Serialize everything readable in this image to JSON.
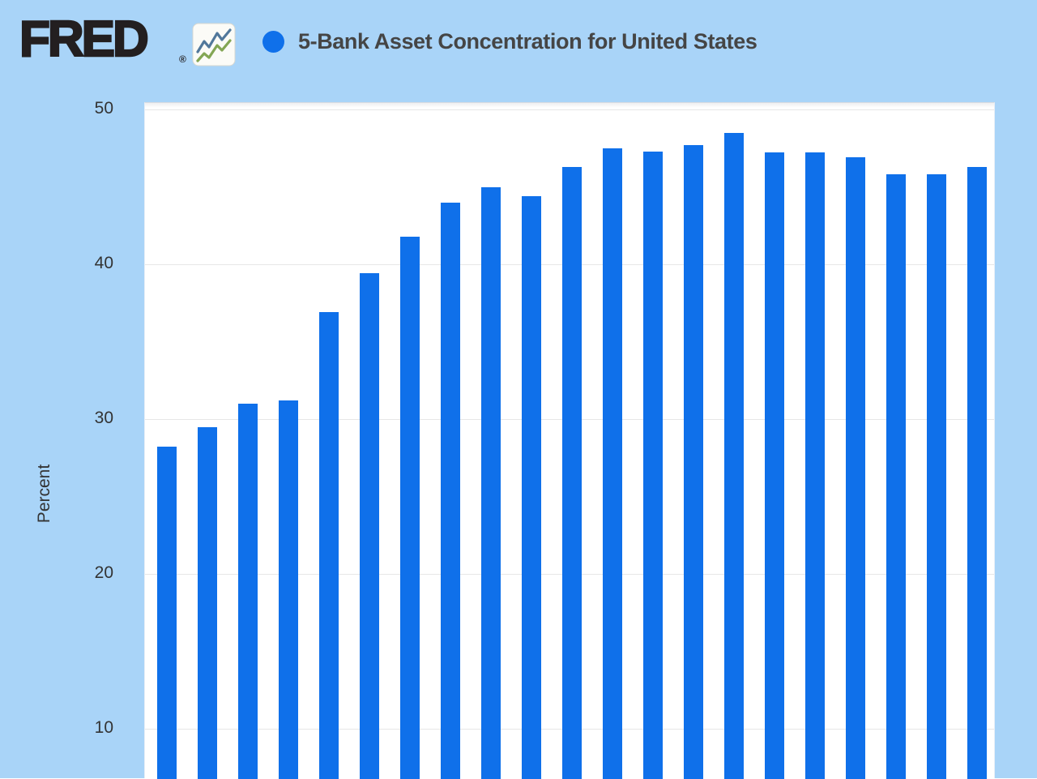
{
  "header": {
    "logo_text": "FRED",
    "registered_mark": "®"
  },
  "chart_data": {
    "type": "bar",
    "title": "5-Bank Asset Concentration for United States",
    "xlabel": "",
    "ylabel": "Percent",
    "y_ticks": [
      10,
      20,
      30,
      40,
      50
    ],
    "ylim": [
      0,
      50
    ],
    "grid": "horizontal-gridlines",
    "legend_position": "top",
    "x_tick_labels_visible": false,
    "bottom_cut_off": true,
    "bar_count": 21,
    "values": [
      28.2,
      29.5,
      31.0,
      31.2,
      36.9,
      39.4,
      41.8,
      44.0,
      45.0,
      44.4,
      46.3,
      47.5,
      47.3,
      47.7,
      48.5,
      47.2,
      47.2,
      46.9,
      45.8,
      45.8,
      46.3
    ]
  },
  "colors": {
    "page_background": "#a9d4f8",
    "plot_background": "#ffffff",
    "bar_fill": "#0f70ea",
    "legend_dot": "#0f70ea",
    "gridline": "#e7e7e7",
    "title_text": "#454545",
    "axis_text": "#333333",
    "logo_text": "#231f20",
    "icon_card_fill": "#fbfbf7",
    "icon_card_border": "#d8d8d0",
    "icon_line_blue": "#51789b",
    "icon_line_green": "#83a654"
  }
}
